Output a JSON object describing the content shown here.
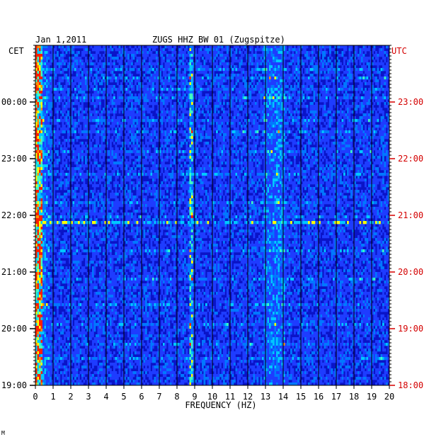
{
  "header": {
    "date": "Jan 1,2011",
    "station": "ZUGS HHZ BW 01 (Zugspitze)",
    "left_tz": "CET",
    "right_tz": "UTC"
  },
  "chart_data": {
    "type": "heatmap",
    "title": "ZUGS HHZ BW 01 (Zugspitze)",
    "xlabel": "FREQUENCY (HZ)",
    "xlim": [
      0,
      20
    ],
    "x_ticks": [
      "0",
      "1",
      "2",
      "3",
      "4",
      "5",
      "6",
      "7",
      "8",
      "9",
      "10",
      "11",
      "12",
      "13",
      "14",
      "15",
      "16",
      "17",
      "18",
      "19",
      "20"
    ],
    "y_ticks_left": [
      "19:00",
      "20:00",
      "21:00",
      "22:00",
      "23:00",
      "00:00"
    ],
    "y_ticks_right": [
      "18:00",
      "19:00",
      "20:00",
      "21:00",
      "22:00",
      "23:00"
    ],
    "grid": true,
    "colors": {
      "background": "#0a14c8",
      "low": "#0a14c8",
      "mid": "#00c8ff",
      "high": "#ffff00",
      "peak": "#ff2000",
      "right_axis_labels": "#d40000"
    }
  },
  "footer": {
    "mark": "M"
  }
}
